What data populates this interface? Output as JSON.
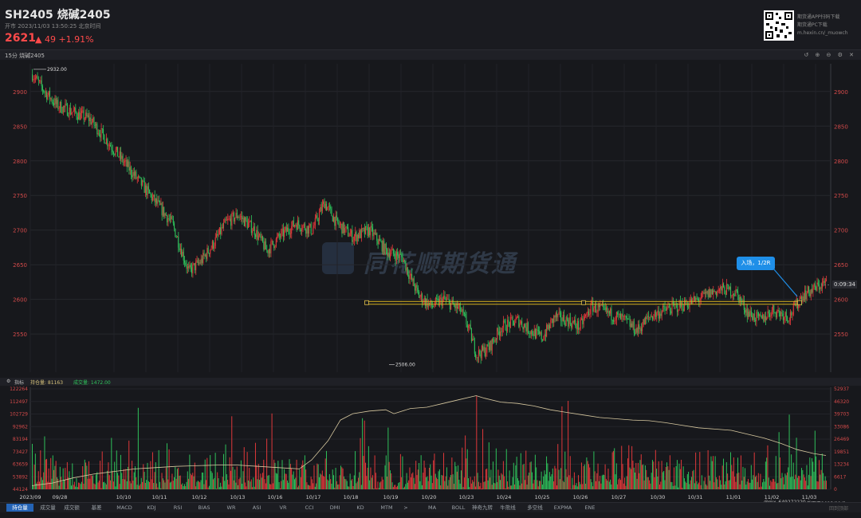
{
  "header": {
    "title": "SH2405 烧碱2405",
    "subtitle": "开市 2023/11/03 13:50:25 北京时间",
    "price": "2621",
    "change": "49 +1.91%",
    "qr_text1": "期货通APP扫码下载",
    "qr_text2": "期货通PC下载",
    "qr_text3": "m.hexin.cn/_muowch",
    "icons": [
      "up-arrow-icon",
      "qr-code-icon"
    ]
  },
  "panel": {
    "label": "15分 烧碱2405",
    "controls": "↺ ⊕ ⊖ ⚙ ✕"
  },
  "watermark": "同花顺期货通",
  "annotation": {
    "text": "入场，1/2R",
    "timer": "0:09:34"
  },
  "volume_panel": {
    "indicator_label": "指标",
    "oi_label": "持仓量: 81163",
    "vol_label": "成交量: 1472.00"
  },
  "tabs": [
    "持仓量",
    "成交量",
    "成交额",
    "基差",
    "MACD",
    "KDJ",
    "RSI",
    "BIAS",
    "WR",
    "ASI",
    "VR",
    "CCI",
    "DMI",
    "KD",
    "MTM",
    ">",
    "MA",
    "BOLL",
    "神奇九转",
    "牛熊线",
    "多空线",
    "EXPMA",
    "ENE"
  ],
  "footer": {
    "left": "@mx_649272220",
    "right": "截取于2023/11/3",
    "top": "回到顶部"
  },
  "colors": {
    "up": "#e5393b",
    "down": "#2fc45c",
    "accent": "#1f8fe8",
    "level": "#d4b020"
  },
  "chart_data": [
    {
      "type": "candlestick",
      "title": "15分 烧碱2405",
      "x_labels": [
        "2023/09",
        "09/28",
        "10/10",
        "10/11",
        "10/12",
        "10/13",
        "10/16",
        "10/17",
        "10/18",
        "10/19",
        "10/20",
        "10/23",
        "10/24",
        "10/25",
        "10/26",
        "10/27",
        "10/30",
        "10/31",
        "11/01",
        "11/02",
        "11/03"
      ],
      "y_ticks": [
        2550,
        2600,
        2650,
        2700,
        2750,
        2800,
        2850,
        2900
      ],
      "ylim": [
        2495,
        2940
      ],
      "annotations": [
        {
          "label": "2932.00",
          "value": 2932
        },
        {
          "label": "2506.00",
          "value": 2506
        }
      ],
      "current_price": 2621,
      "level_lines": [
        2593,
        2597
      ],
      "path": [
        [
          0,
          2925
        ],
        [
          3,
          2900
        ],
        [
          6,
          2880
        ],
        [
          10,
          2870
        ],
        [
          14,
          2860
        ],
        [
          18,
          2830
        ],
        [
          22,
          2800
        ],
        [
          26,
          2770
        ],
        [
          30,
          2740
        ],
        [
          34,
          2710
        ],
        [
          38,
          2640
        ],
        [
          41,
          2655
        ],
        [
          44,
          2680
        ],
        [
          47,
          2710
        ],
        [
          50,
          2722
        ],
        [
          54,
          2700
        ],
        [
          57,
          2670
        ],
        [
          60,
          2690
        ],
        [
          64,
          2710
        ],
        [
          68,
          2700
        ],
        [
          71,
          2740
        ],
        [
          74,
          2710
        ],
        [
          78,
          2690
        ],
        [
          82,
          2700
        ],
        [
          86,
          2670
        ],
        [
          90,
          2660
        ],
        [
          92,
          2630
        ],
        [
          94,
          2605
        ],
        [
          97,
          2590
        ],
        [
          100,
          2600
        ],
        [
          104,
          2585
        ],
        [
          106,
          2560
        ],
        [
          108,
          2520
        ],
        [
          111,
          2530
        ],
        [
          114,
          2560
        ],
        [
          118,
          2570
        ],
        [
          121,
          2555
        ],
        [
          124,
          2545
        ],
        [
          127,
          2575
        ],
        [
          130,
          2570
        ],
        [
          133,
          2560
        ],
        [
          136,
          2590
        ],
        [
          140,
          2580
        ],
        [
          144,
          2570
        ],
        [
          147,
          2555
        ],
        [
          150,
          2575
        ],
        [
          154,
          2585
        ],
        [
          158,
          2592
        ],
        [
          162,
          2600
        ],
        [
          165,
          2610
        ],
        [
          168,
          2615
        ],
        [
          171,
          2610
        ],
        [
          174,
          2580
        ],
        [
          177,
          2570
        ],
        [
          180,
          2585
        ],
        [
          184,
          2575
        ],
        [
          187,
          2605
        ],
        [
          190,
          2615
        ],
        [
          193,
          2625
        ]
      ]
    },
    {
      "type": "bar",
      "title": "持仓量 / 成交量",
      "y_ticks_left": [
        44124,
        53892,
        63659,
        73427,
        83194,
        92962,
        102729,
        112497,
        122264
      ],
      "y_ticks_right": [
        0,
        6617,
        13234,
        19851,
        26469,
        33086,
        39703,
        46320,
        52937
      ],
      "oi_path": [
        [
          0,
          47000
        ],
        [
          5,
          49000
        ],
        [
          10,
          53000
        ],
        [
          15,
          56000
        ],
        [
          20,
          58000
        ],
        [
          25,
          60000
        ],
        [
          30,
          61000
        ],
        [
          35,
          62000
        ],
        [
          40,
          62500
        ],
        [
          45,
          63000
        ],
        [
          50,
          63000
        ],
        [
          55,
          62000
        ],
        [
          60,
          61000
        ],
        [
          65,
          60000
        ],
        [
          68,
          67000
        ],
        [
          72,
          82000
        ],
        [
          75,
          98000
        ],
        [
          78,
          103000
        ],
        [
          82,
          105000
        ],
        [
          86,
          106000
        ],
        [
          88,
          103000
        ],
        [
          92,
          107000
        ],
        [
          96,
          108000
        ],
        [
          100,
          111000
        ],
        [
          104,
          114000
        ],
        [
          108,
          117000
        ],
        [
          110,
          115000
        ],
        [
          114,
          112000
        ],
        [
          118,
          111000
        ],
        [
          122,
          109000
        ],
        [
          126,
          106000
        ],
        [
          130,
          104000
        ],
        [
          134,
          102000
        ],
        [
          138,
          100000
        ],
        [
          142,
          99000
        ],
        [
          146,
          98000
        ],
        [
          150,
          97500
        ],
        [
          154,
          96000
        ],
        [
          158,
          94000
        ],
        [
          162,
          92000
        ],
        [
          166,
          91000
        ],
        [
          170,
          90000
        ],
        [
          174,
          87000
        ],
        [
          178,
          84000
        ],
        [
          182,
          80000
        ],
        [
          186,
          75000
        ],
        [
          190,
          72000
        ],
        [
          193,
          70500
        ]
      ]
    }
  ]
}
